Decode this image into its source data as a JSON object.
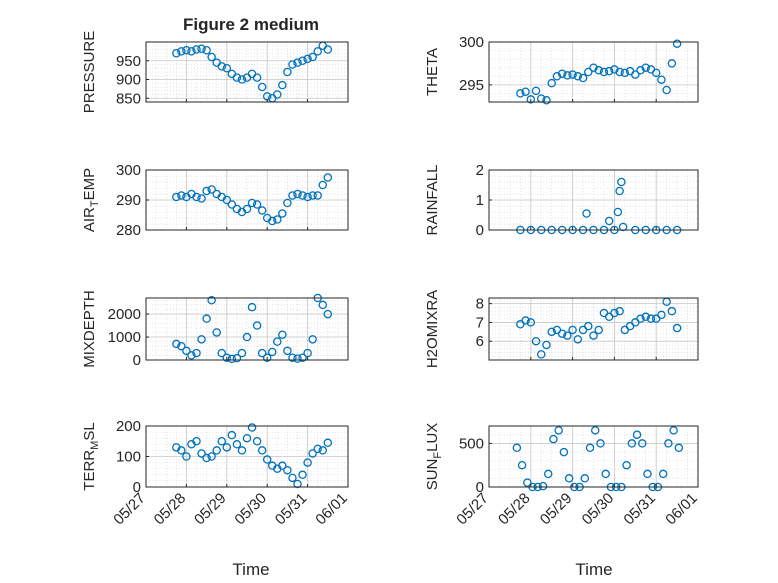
{
  "figure": {
    "title": "Figure 2 medium",
    "xlabel": "Time",
    "accent_color": "#0072BD"
  },
  "chart_data": [
    {
      "type": "scatter",
      "ylabel": "PRESSURE",
      "title": "Figure 2 medium",
      "xlim": [
        "05/27",
        "06/01"
      ],
      "ylim": [
        840,
        1000
      ],
      "yticks": [
        850,
        900,
        950
      ],
      "grid": true,
      "x": [
        "05/27 18:00",
        "05/27 21:00",
        "05/28 00:00",
        "05/28 03:00",
        "05/28 06:00",
        "05/28 09:00",
        "05/28 12:00",
        "05/28 15:00",
        "05/28 18:00",
        "05/28 21:00",
        "05/29 00:00",
        "05/29 03:00",
        "05/29 06:00",
        "05/29 09:00",
        "05/29 12:00",
        "05/29 15:00",
        "05/29 18:00",
        "05/29 21:00",
        "05/30 00:00",
        "05/30 03:00",
        "05/30 06:00",
        "05/30 09:00",
        "05/30 12:00",
        "05/30 15:00",
        "05/30 18:00",
        "05/30 21:00",
        "05/31 00:00",
        "05/31 03:00",
        "05/31 06:00",
        "05/31 09:00",
        "05/31 12:00"
      ],
      "y": [
        970,
        975,
        978,
        975,
        980,
        982,
        978,
        960,
        945,
        935,
        930,
        915,
        905,
        900,
        905,
        915,
        905,
        880,
        855,
        850,
        860,
        885,
        920,
        940,
        945,
        950,
        955,
        960,
        975,
        990,
        980
      ]
    },
    {
      "type": "scatter",
      "ylabel": "THETA",
      "xlim": [
        "05/27",
        "06/01"
      ],
      "ylim": [
        293,
        300
      ],
      "yticks": [
        295,
        300
      ],
      "grid": true,
      "x": [
        "05/27 18:00",
        "05/27 21:00",
        "05/28 00:00",
        "05/28 03:00",
        "05/28 06:00",
        "05/28 09:00",
        "05/28 12:00",
        "05/28 15:00",
        "05/28 18:00",
        "05/28 21:00",
        "05/29 00:00",
        "05/29 03:00",
        "05/29 06:00",
        "05/29 09:00",
        "05/29 12:00",
        "05/29 15:00",
        "05/29 18:00",
        "05/29 21:00",
        "05/30 00:00",
        "05/30 03:00",
        "05/30 06:00",
        "05/30 09:00",
        "05/30 12:00",
        "05/30 15:00",
        "05/30 18:00",
        "05/30 21:00",
        "05/31 00:00",
        "05/31 03:00",
        "05/31 06:00",
        "05/31 09:00",
        "05/31 12:00"
      ],
      "y": [
        294.0,
        294.2,
        293.3,
        294.3,
        293.4,
        293.2,
        295.2,
        296.0,
        296.3,
        296.1,
        296.2,
        296.0,
        295.8,
        296.5,
        297.0,
        296.7,
        296.5,
        296.6,
        296.8,
        296.5,
        296.4,
        296.6,
        296.2,
        296.7,
        297.0,
        296.8,
        296.4,
        295.6,
        294.4,
        297.5,
        299.8
      ]
    },
    {
      "type": "scatter",
      "ylabel": "AIR_TEMP",
      "xlim": [
        "05/27",
        "06/01"
      ],
      "ylim": [
        280,
        300
      ],
      "yticks": [
        280,
        290,
        300
      ],
      "grid": true,
      "x": [
        "05/27 18:00",
        "05/27 21:00",
        "05/28 00:00",
        "05/28 03:00",
        "05/28 06:00",
        "05/28 09:00",
        "05/28 12:00",
        "05/28 15:00",
        "05/28 18:00",
        "05/28 21:00",
        "05/29 00:00",
        "05/29 03:00",
        "05/29 06:00",
        "05/29 09:00",
        "05/29 12:00",
        "05/29 15:00",
        "05/29 18:00",
        "05/29 21:00",
        "05/30 00:00",
        "05/30 03:00",
        "05/30 06:00",
        "05/30 09:00",
        "05/30 12:00",
        "05/30 15:00",
        "05/30 18:00",
        "05/30 21:00",
        "05/31 00:00",
        "05/31 03:00",
        "05/31 06:00",
        "05/31 09:00",
        "05/31 12:00"
      ],
      "y": [
        291.0,
        291.5,
        291.0,
        292.0,
        291.0,
        290.5,
        293.0,
        293.5,
        292.0,
        291.0,
        290.0,
        288.5,
        287.0,
        286.0,
        287.0,
        289.0,
        288.5,
        286.5,
        284.0,
        283.0,
        283.5,
        285.5,
        289.0,
        291.5,
        292.0,
        291.5,
        291.0,
        291.5,
        291.5,
        295.0,
        297.5
      ]
    },
    {
      "type": "scatter",
      "ylabel": "RAINFALL",
      "xlim": [
        "05/27",
        "06/01"
      ],
      "ylim": [
        0,
        2
      ],
      "yticks": [
        0,
        1,
        2
      ],
      "grid": true,
      "x": [
        "05/27 18:00",
        "05/28 00:00",
        "05/28 06:00",
        "05/28 12:00",
        "05/28 18:00",
        "05/29 00:00",
        "05/29 06:00",
        "05/29 08:00",
        "05/29 12:00",
        "05/29 18:00",
        "05/29 21:00",
        "05/30 00:00",
        "05/30 02:00",
        "05/30 03:00",
        "05/30 04:00",
        "05/30 05:00",
        "05/30 12:00",
        "05/30 18:00",
        "05/31 00:00",
        "05/31 06:00",
        "05/31 12:00"
      ],
      "y": [
        0,
        0,
        0,
        0,
        0,
        0,
        0,
        0.55,
        0,
        0,
        0.3,
        0,
        0.6,
        1.3,
        1.6,
        0.1,
        0,
        0,
        0,
        0,
        0
      ]
    },
    {
      "type": "scatter",
      "ylabel": "MIXDEPTH",
      "xlim": [
        "05/27",
        "06/01"
      ],
      "ylim": [
        0,
        2700
      ],
      "yticks": [
        0,
        1000,
        2000
      ],
      "grid": true,
      "x": [
        "05/27 18:00",
        "05/27 21:00",
        "05/28 00:00",
        "05/28 03:00",
        "05/28 06:00",
        "05/28 09:00",
        "05/28 12:00",
        "05/28 15:00",
        "05/28 18:00",
        "05/28 21:00",
        "05/29 00:00",
        "05/29 03:00",
        "05/29 06:00",
        "05/29 09:00",
        "05/29 12:00",
        "05/29 15:00",
        "05/29 18:00",
        "05/29 21:00",
        "05/30 00:00",
        "05/30 03:00",
        "05/30 06:00",
        "05/30 09:00",
        "05/30 12:00",
        "05/30 15:00",
        "05/30 18:00",
        "05/30 21:00",
        "05/31 00:00",
        "05/31 03:00",
        "05/31 06:00",
        "05/31 09:00",
        "05/31 12:00"
      ],
      "y": [
        700,
        600,
        400,
        200,
        300,
        900,
        1800,
        2600,
        1200,
        300,
        100,
        50,
        80,
        300,
        1000,
        2300,
        1500,
        300,
        100,
        350,
        800,
        1100,
        400,
        100,
        60,
        100,
        300,
        900,
        2700,
        2400,
        2000
      ]
    },
    {
      "type": "scatter",
      "ylabel": "H2OMIXRA",
      "xlim": [
        "05/27",
        "06/01"
      ],
      "ylim": [
        5,
        8.3
      ],
      "yticks": [
        6,
        7,
        8
      ],
      "grid": true,
      "x": [
        "05/27 18:00",
        "05/27 21:00",
        "05/28 00:00",
        "05/28 03:00",
        "05/28 06:00",
        "05/28 09:00",
        "05/28 12:00",
        "05/28 15:00",
        "05/28 18:00",
        "05/28 21:00",
        "05/29 00:00",
        "05/29 03:00",
        "05/29 06:00",
        "05/29 09:00",
        "05/29 12:00",
        "05/29 15:00",
        "05/29 18:00",
        "05/29 21:00",
        "05/30 00:00",
        "05/30 03:00",
        "05/30 06:00",
        "05/30 09:00",
        "05/30 12:00",
        "05/30 15:00",
        "05/30 18:00",
        "05/30 21:00",
        "05/31 00:00",
        "05/31 03:00",
        "05/31 06:00",
        "05/31 09:00",
        "05/31 12:00"
      ],
      "y": [
        6.9,
        7.1,
        7.0,
        6.0,
        5.3,
        5.8,
        6.5,
        6.6,
        6.4,
        6.3,
        6.6,
        6.1,
        6.6,
        6.8,
        6.3,
        6.6,
        7.5,
        7.3,
        7.5,
        7.6,
        6.6,
        6.8,
        7.0,
        7.2,
        7.3,
        7.2,
        7.2,
        7.4,
        8.1,
        7.6,
        6.7
      ]
    },
    {
      "type": "scatter",
      "ylabel": "TERR_MSL",
      "xlim": [
        "05/27",
        "06/01"
      ],
      "ylim": [
        0,
        200
      ],
      "yticks": [
        0,
        100,
        200
      ],
      "grid": true,
      "x": [
        "05/27 18:00",
        "05/27 21:00",
        "05/28 00:00",
        "05/28 03:00",
        "05/28 06:00",
        "05/28 09:00",
        "05/28 12:00",
        "05/28 15:00",
        "05/28 18:00",
        "05/28 21:00",
        "05/29 00:00",
        "05/29 03:00",
        "05/29 06:00",
        "05/29 09:00",
        "05/29 12:00",
        "05/29 15:00",
        "05/29 18:00",
        "05/29 21:00",
        "05/30 00:00",
        "05/30 03:00",
        "05/30 06:00",
        "05/30 09:00",
        "05/30 12:00",
        "05/30 15:00",
        "05/30 18:00",
        "05/30 21:00",
        "05/31 00:00",
        "05/31 03:00",
        "05/31 06:00",
        "05/31 09:00",
        "05/31 12:00"
      ],
      "y": [
        130,
        120,
        100,
        140,
        150,
        110,
        95,
        100,
        120,
        150,
        130,
        170,
        140,
        120,
        160,
        195,
        150,
        120,
        90,
        70,
        60,
        70,
        55,
        30,
        10,
        40,
        80,
        110,
        125,
        120,
        145
      ]
    },
    {
      "type": "scatter",
      "ylabel": "SUN_FLUX",
      "xlim": [
        "05/27",
        "06/01"
      ],
      "ylim": [
        0,
        700
      ],
      "yticks": [
        0,
        500
      ],
      "grid": true,
      "x": [
        "05/27 16:00",
        "05/27 19:00",
        "05/27 22:00",
        "05/28 01:00",
        "05/28 04:00",
        "05/28 07:00",
        "05/28 10:00",
        "05/28 13:00",
        "05/28 16:00",
        "05/28 19:00",
        "05/28 22:00",
        "05/29 01:00",
        "05/29 04:00",
        "05/29 07:00",
        "05/29 10:00",
        "05/29 13:00",
        "05/29 16:00",
        "05/29 19:00",
        "05/29 22:00",
        "05/30 01:00",
        "05/30 04:00",
        "05/30 07:00",
        "05/30 10:00",
        "05/30 13:00",
        "05/30 16:00",
        "05/30 19:00",
        "05/30 22:00",
        "05/31 01:00",
        "05/31 04:00",
        "05/31 07:00",
        "05/31 10:00",
        "05/31 13:00"
      ],
      "y": [
        450,
        250,
        50,
        0,
        0,
        10,
        150,
        550,
        650,
        400,
        100,
        0,
        0,
        100,
        450,
        650,
        500,
        150,
        0,
        0,
        0,
        250,
        500,
        600,
        500,
        150,
        0,
        0,
        150,
        500,
        650,
        450
      ]
    }
  ],
  "xticks": [
    "05/27",
    "05/28",
    "05/29",
    "05/30",
    "05/31",
    "06/01"
  ]
}
